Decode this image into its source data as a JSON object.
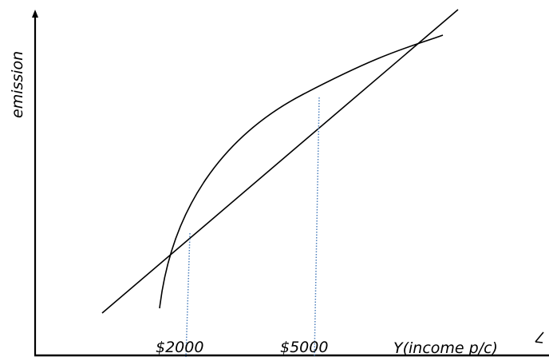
{
  "axes": {
    "y_label": "emission",
    "x_label": "Y(income p/c)"
  },
  "ticks": [
    {
      "label": "$2000"
    },
    {
      "label": "$5000"
    }
  ],
  "colors": {
    "ink": "#000000",
    "guide": "#4f81bd",
    "background": "#ffffff"
  }
}
